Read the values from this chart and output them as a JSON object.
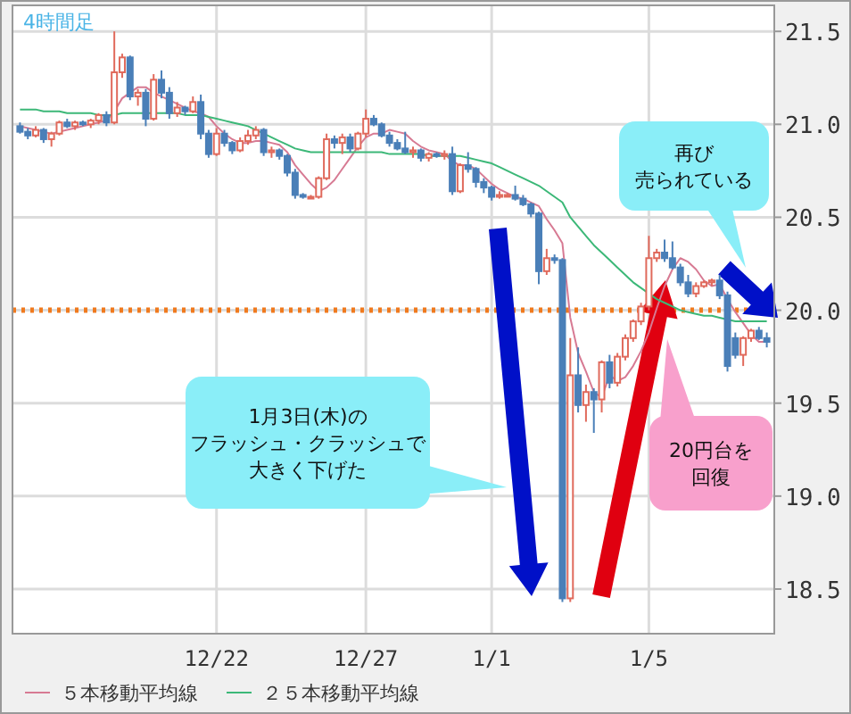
{
  "chart_data": {
    "type": "candlestick",
    "categories": [
      null,
      null,
      null,
      null,
      null,
      null,
      null,
      null,
      null,
      null,
      null,
      null,
      null,
      null,
      null,
      null,
      null,
      null,
      null,
      null,
      null,
      null,
      null,
      null,
      null,
      "12/22",
      null,
      null,
      null,
      null,
      null,
      null,
      null,
      null,
      null,
      null,
      null,
      null,
      null,
      null,
      null,
      null,
      null,
      null,
      "12/27",
      null,
      null,
      null,
      null,
      null,
      null,
      null,
      null,
      null,
      null,
      null,
      null,
      null,
      null,
      null,
      "1/1",
      null,
      null,
      null,
      null,
      null,
      null,
      null,
      null,
      null,
      null,
      null,
      null,
      null,
      null,
      null,
      null,
      null,
      null,
      null,
      "1/5",
      null,
      null,
      null,
      null,
      null,
      null,
      null,
      null,
      null,
      null,
      null,
      null,
      null,
      null,
      null
    ],
    "ohlc": [
      [
        20.99,
        21.01,
        20.95,
        20.96
      ],
      [
        20.96,
        20.98,
        20.92,
        20.94
      ],
      [
        20.94,
        20.99,
        20.93,
        20.97
      ],
      [
        20.97,
        20.98,
        20.9,
        20.92
      ],
      [
        20.92,
        20.96,
        20.88,
        20.95
      ],
      [
        20.95,
        21.02,
        20.94,
        21.01
      ],
      [
        21.01,
        21.03,
        20.98,
        20.99
      ],
      [
        20.99,
        21.02,
        20.97,
        21.01
      ],
      [
        21.01,
        21.02,
        20.99,
        21.0
      ],
      [
        21.0,
        21.03,
        20.98,
        21.02
      ],
      [
        21.02,
        21.06,
        21.0,
        21.05
      ],
      [
        21.05,
        21.07,
        20.99,
        21.01
      ],
      [
        21.01,
        21.5,
        21.0,
        21.28
      ],
      [
        21.28,
        21.38,
        21.25,
        21.36
      ],
      [
        21.36,
        21.37,
        21.13,
        21.15
      ],
      [
        21.15,
        21.19,
        21.1,
        21.17
      ],
      [
        21.17,
        21.19,
        20.99,
        21.03
      ],
      [
        21.03,
        21.27,
        21.02,
        21.24
      ],
      [
        21.24,
        21.29,
        21.14,
        21.17
      ],
      [
        21.17,
        21.2,
        21.03,
        21.06
      ],
      [
        21.06,
        21.12,
        21.04,
        21.09
      ],
      [
        21.09,
        21.1,
        21.05,
        21.07
      ],
      [
        21.07,
        21.15,
        21.06,
        21.12
      ],
      [
        21.12,
        21.16,
        20.92,
        20.95
      ],
      [
        20.95,
        20.97,
        20.82,
        20.84
      ],
      [
        20.84,
        20.98,
        20.83,
        20.95
      ],
      [
        20.95,
        20.97,
        20.88,
        20.9
      ],
      [
        20.9,
        20.91,
        20.84,
        20.86
      ],
      [
        20.86,
        20.93,
        20.85,
        20.91
      ],
      [
        20.91,
        20.97,
        20.89,
        20.94
      ],
      [
        20.94,
        20.99,
        20.92,
        20.97
      ],
      [
        20.97,
        20.98,
        20.83,
        20.85
      ],
      [
        20.85,
        20.88,
        20.82,
        20.86
      ],
      [
        20.86,
        20.87,
        20.81,
        20.83
      ],
      [
        20.83,
        20.84,
        20.72,
        20.74
      ],
      [
        20.74,
        20.76,
        20.6,
        20.62
      ],
      [
        20.62,
        20.63,
        20.6,
        20.61
      ],
      [
        20.61,
        20.62,
        20.6,
        20.61
      ],
      [
        20.61,
        20.72,
        20.6,
        20.71
      ],
      [
        20.71,
        20.95,
        20.7,
        20.92
      ],
      [
        20.92,
        20.94,
        20.87,
        20.9
      ],
      [
        20.9,
        20.95,
        20.84,
        20.93
      ],
      [
        20.93,
        20.95,
        20.85,
        20.87
      ],
      [
        20.87,
        20.96,
        20.86,
        20.95
      ],
      [
        20.95,
        21.08,
        20.93,
        21.03
      ],
      [
        21.03,
        21.05,
        20.99,
        21.0
      ],
      [
        21.0,
        21.01,
        20.93,
        20.94
      ],
      [
        20.94,
        20.96,
        20.88,
        20.9
      ],
      [
        20.9,
        20.92,
        20.86,
        20.87
      ],
      [
        20.87,
        20.96,
        20.84,
        20.85
      ],
      [
        20.85,
        20.88,
        20.82,
        20.86
      ],
      [
        20.86,
        20.87,
        20.8,
        20.82
      ],
      [
        20.82,
        20.85,
        20.8,
        20.84
      ],
      [
        20.84,
        20.85,
        20.82,
        20.83
      ],
      [
        20.83,
        20.86,
        20.81,
        20.84
      ],
      [
        20.84,
        20.88,
        20.62,
        20.64
      ],
      [
        20.64,
        20.79,
        20.63,
        20.78
      ],
      [
        20.78,
        20.85,
        20.74,
        20.76
      ],
      [
        20.76,
        20.77,
        20.66,
        20.69
      ],
      [
        20.69,
        20.71,
        20.63,
        20.66
      ],
      [
        20.66,
        20.67,
        20.59,
        20.61
      ],
      [
        20.61,
        20.64,
        20.6,
        20.62
      ],
      [
        20.62,
        20.63,
        20.61,
        20.62
      ],
      [
        20.62,
        20.67,
        20.59,
        20.6
      ],
      [
        20.6,
        20.62,
        20.56,
        20.57
      ],
      [
        20.57,
        20.58,
        20.5,
        20.52
      ],
      [
        20.52,
        20.53,
        20.14,
        20.21
      ],
      [
        20.21,
        20.33,
        20.19,
        20.28
      ],
      [
        20.28,
        20.3,
        20.25,
        20.27
      ],
      [
        20.27,
        20.28,
        18.43,
        18.45
      ],
      [
        18.45,
        19.85,
        18.43,
        19.65
      ],
      [
        19.65,
        19.8,
        19.45,
        19.49
      ],
      [
        19.49,
        19.6,
        19.4,
        19.56
      ],
      [
        19.56,
        19.58,
        19.34,
        19.52
      ],
      [
        19.52,
        19.73,
        19.45,
        19.72
      ],
      [
        19.72,
        19.76,
        19.58,
        19.61
      ],
      [
        19.61,
        19.77,
        19.59,
        19.75
      ],
      [
        19.75,
        19.87,
        19.73,
        19.85
      ],
      [
        19.85,
        19.95,
        19.83,
        19.94
      ],
      [
        19.94,
        20.04,
        19.92,
        20.02
      ],
      [
        20.02,
        20.4,
        20.0,
        20.28
      ],
      [
        20.28,
        20.33,
        20.26,
        20.31
      ],
      [
        20.31,
        20.38,
        20.26,
        20.28
      ],
      [
        20.28,
        20.37,
        20.22,
        20.23
      ],
      [
        20.23,
        20.25,
        20.13,
        20.15
      ],
      [
        20.15,
        20.19,
        20.07,
        20.09
      ],
      [
        20.09,
        20.15,
        20.07,
        20.13
      ],
      [
        20.13,
        20.16,
        20.12,
        20.15
      ],
      [
        20.15,
        20.17,
        20.13,
        20.16
      ],
      [
        20.16,
        20.19,
        20.06,
        20.08
      ],
      [
        20.08,
        20.1,
        19.67,
        19.7
      ],
      [
        19.85,
        19.88,
        19.74,
        19.76
      ],
      [
        19.76,
        19.86,
        19.7,
        19.85
      ],
      [
        19.85,
        19.9,
        19.83,
        19.89
      ],
      [
        19.89,
        19.91,
        19.84,
        19.85
      ],
      [
        19.85,
        19.88,
        19.8,
        19.83
      ]
    ],
    "series": [
      {
        "type": "line",
        "name": "５本移動平均線",
        "color": "#d77a93",
        "values": [
          20.99,
          20.98,
          20.97,
          20.96,
          20.95,
          20.96,
          20.97,
          20.98,
          20.99,
          21.0,
          21.01,
          21.02,
          21.07,
          21.14,
          21.17,
          21.2,
          21.2,
          21.17,
          21.15,
          21.13,
          21.11,
          21.09,
          21.07,
          21.06,
          21.04,
          20.99,
          20.95,
          20.92,
          20.9,
          20.9,
          20.91,
          20.91,
          20.9,
          20.89,
          20.85,
          20.78,
          20.73,
          20.68,
          20.64,
          20.66,
          20.7,
          20.76,
          20.82,
          20.88,
          20.93,
          20.95,
          20.95,
          20.97,
          20.96,
          20.95,
          20.91,
          20.88,
          20.86,
          20.85,
          20.84,
          20.8,
          20.78,
          20.78,
          20.76,
          20.72,
          20.68,
          20.65,
          20.63,
          20.61,
          20.6,
          20.58,
          20.56,
          20.49,
          20.43,
          20.36,
          19.96,
          19.77,
          19.67,
          19.56,
          19.53,
          19.65,
          19.62,
          19.64,
          19.7,
          19.78,
          19.88,
          20.01,
          20.13,
          20.22,
          20.28,
          20.26,
          20.22,
          20.16,
          20.13,
          20.14,
          20.06,
          19.99,
          19.93,
          19.87,
          19.83,
          19.83
        ]
      },
      {
        "type": "line",
        "name": "２５本移動平均線",
        "color": "#3cb878",
        "values": [
          21.08,
          21.08,
          21.08,
          21.07,
          21.07,
          21.07,
          21.06,
          21.06,
          21.06,
          21.06,
          21.05,
          21.05,
          21.05,
          21.06,
          21.06,
          21.06,
          21.06,
          21.06,
          21.06,
          21.06,
          21.06,
          21.05,
          21.05,
          21.05,
          21.04,
          21.03,
          21.02,
          21.01,
          21.0,
          20.99,
          20.97,
          20.95,
          20.93,
          20.91,
          20.89,
          20.87,
          20.86,
          20.85,
          20.85,
          20.85,
          20.85,
          20.85,
          20.85,
          20.85,
          20.85,
          20.85,
          20.85,
          20.84,
          20.84,
          20.84,
          20.84,
          20.84,
          20.83,
          20.83,
          20.83,
          20.83,
          20.83,
          20.82,
          20.81,
          20.8,
          20.79,
          20.77,
          20.75,
          20.73,
          20.71,
          20.69,
          20.67,
          20.64,
          20.61,
          20.58,
          20.5,
          20.45,
          20.4,
          20.35,
          20.31,
          20.27,
          20.23,
          20.19,
          20.15,
          20.12,
          20.09,
          20.06,
          20.04,
          20.02,
          20.0,
          19.99,
          19.98,
          19.97,
          19.97,
          19.96,
          19.95,
          19.94,
          19.94,
          19.94,
          19.94,
          19.94
        ]
      }
    ],
    "ylim": [
      18.26,
      21.64
    ],
    "yticks": [
      {
        "value": 18.5,
        "label": "18.5"
      },
      {
        "value": 19,
        "label": "19.0"
      },
      {
        "value": 19.5,
        "label": "19.5"
      },
      {
        "value": 20,
        "label": "20.0"
      },
      {
        "value": 20.5,
        "label": "20.5"
      },
      {
        "value": 21,
        "label": "21.0"
      },
      {
        "value": 21.5,
        "label": "21.5"
      }
    ],
    "grid": true,
    "legend": "bottom",
    "ref_lines": [
      {
        "axis": "y",
        "value": 20,
        "color": "#f07a1e",
        "line_style": "dotted"
      }
    ],
    "annotations": [
      "4時間足",
      "1月3日(木)の",
      "フラッシュ・クラッシュで",
      "大きく下げた",
      "再び",
      "売られている",
      "20円台を",
      "回復"
    ]
  }
}
